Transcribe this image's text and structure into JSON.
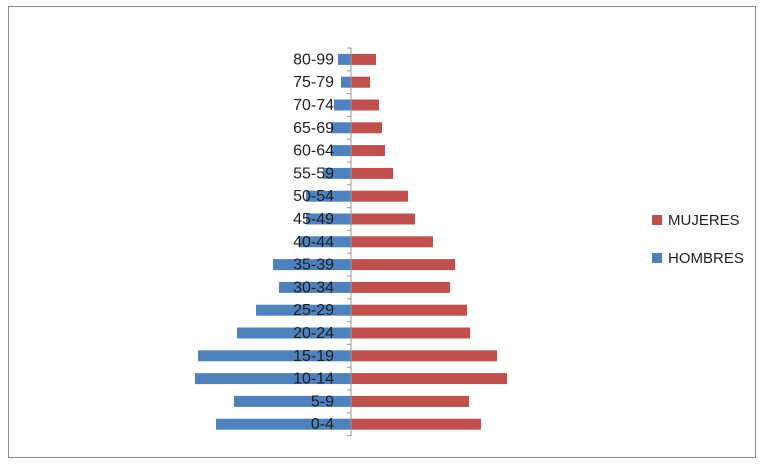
{
  "chart_data": {
    "type": "bar",
    "orientation": "horizontal",
    "title": "",
    "xlabel": "",
    "ylabel": "",
    "categories": [
      "0-4",
      "5-9",
      "10-14",
      "15-19",
      "20-24",
      "25-29",
      "30-34",
      "35-39",
      "40-44",
      "45-49",
      "50-54",
      "55-59",
      "60-64",
      "65-69",
      "70-74",
      "75-79",
      "80-99"
    ],
    "series": [
      {
        "name": "MUJERES",
        "color": "#c0504d",
        "values": [
          130,
          118,
          156,
          146,
          119,
          116,
          99,
          104,
          82,
          64,
          57,
          42,
          34,
          31,
          28,
          19,
          25
        ]
      },
      {
        "name": "HOMBRES",
        "color": "#4f81bd",
        "values": [
          135,
          117,
          156,
          153,
          114,
          95,
          72,
          78,
          52,
          45,
          45,
          28,
          20,
          20,
          17,
          10,
          13
        ]
      }
    ],
    "legend": {
      "position": "right",
      "order": [
        "MUJERES",
        "HOMBRES"
      ]
    },
    "grid": false
  }
}
